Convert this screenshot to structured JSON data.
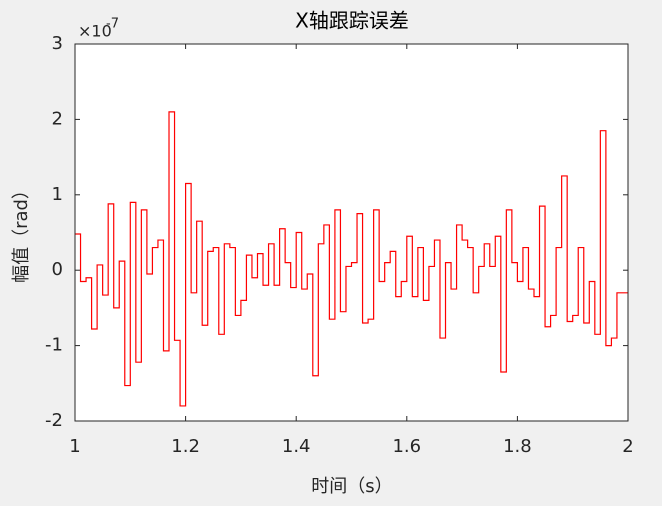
{
  "chart_data": {
    "type": "stairs",
    "title": "X轴跟踪误差",
    "xlabel": "时间（s）",
    "ylabel": "幅值（rad）",
    "y_multiplier": "×10",
    "y_exponent": "-7",
    "xlim": [
      1,
      2
    ],
    "xticks": [
      1,
      1.2,
      1.4,
      1.6,
      1.8,
      2
    ],
    "ylim": [
      -2,
      3
    ],
    "yticks": [
      -2,
      -1,
      0,
      1,
      2,
      3
    ],
    "x": [
      1,
      1.01,
      1.02,
      1.03,
      1.04,
      1.05,
      1.06,
      1.07,
      1.08,
      1.09,
      1.1,
      1.11,
      1.12,
      1.13,
      1.14,
      1.15,
      1.16,
      1.17,
      1.18,
      1.19,
      1.2,
      1.21,
      1.22,
      1.23,
      1.24,
      1.25,
      1.26,
      1.27,
      1.28,
      1.29,
      1.3,
      1.31,
      1.32,
      1.33,
      1.34,
      1.35,
      1.36,
      1.37,
      1.38,
      1.39,
      1.4,
      1.41,
      1.42,
      1.43,
      1.44,
      1.45,
      1.46,
      1.47,
      1.48,
      1.49,
      1.5,
      1.51,
      1.52,
      1.53,
      1.54,
      1.55,
      1.56,
      1.57,
      1.58,
      1.59,
      1.6,
      1.61,
      1.62,
      1.63,
      1.64,
      1.65,
      1.66,
      1.67,
      1.68,
      1.69,
      1.7,
      1.71,
      1.72,
      1.73,
      1.74,
      1.75,
      1.76,
      1.77,
      1.78,
      1.79,
      1.8,
      1.81,
      1.82,
      1.83,
      1.84,
      1.85,
      1.86,
      1.87,
      1.88,
      1.89,
      1.9,
      1.91,
      1.92,
      1.93,
      1.94,
      1.95,
      1.96,
      1.97,
      1.98,
      1.99
    ],
    "series": [
      {
        "color": "#ff0000",
        "values": [
          0.48,
          -0.15,
          -0.1,
          -0.78,
          0.07,
          -0.33,
          0.88,
          -0.5,
          0.12,
          -1.53,
          0.9,
          -1.22,
          0.8,
          -0.05,
          0.3,
          0.4,
          -1.07,
          2.1,
          -0.93,
          -1.8,
          1.15,
          -0.3,
          0.65,
          -0.73,
          0.25,
          0.3,
          -0.85,
          0.35,
          0.3,
          -0.6,
          -0.4,
          0.2,
          -0.1,
          0.22,
          -0.2,
          0.35,
          -0.2,
          0.55,
          0.1,
          -0.23,
          0.5,
          -0.25,
          -0.05,
          -1.4,
          0.35,
          0.6,
          -0.65,
          0.8,
          -0.55,
          0.05,
          0.1,
          0.75,
          -0.7,
          -0.65,
          0.8,
          -0.15,
          0.1,
          0.25,
          -0.35,
          -0.15,
          0.45,
          -0.35,
          0.3,
          -0.4,
          0.05,
          0.4,
          -0.9,
          0.1,
          -0.25,
          0.6,
          0.4,
          0.3,
          -0.3,
          0.05,
          0.35,
          0.05,
          0.45,
          -1.35,
          0.8,
          0.1,
          -0.15,
          0.3,
          -0.25,
          -0.35,
          0.85,
          -0.75,
          -0.6,
          0.3,
          1.25,
          -0.68,
          -0.6,
          0.3,
          -0.7,
          -0.15,
          -0.85,
          1.85,
          -1.0,
          -0.9,
          -0.3,
          -0.3
        ]
      }
    ]
  }
}
